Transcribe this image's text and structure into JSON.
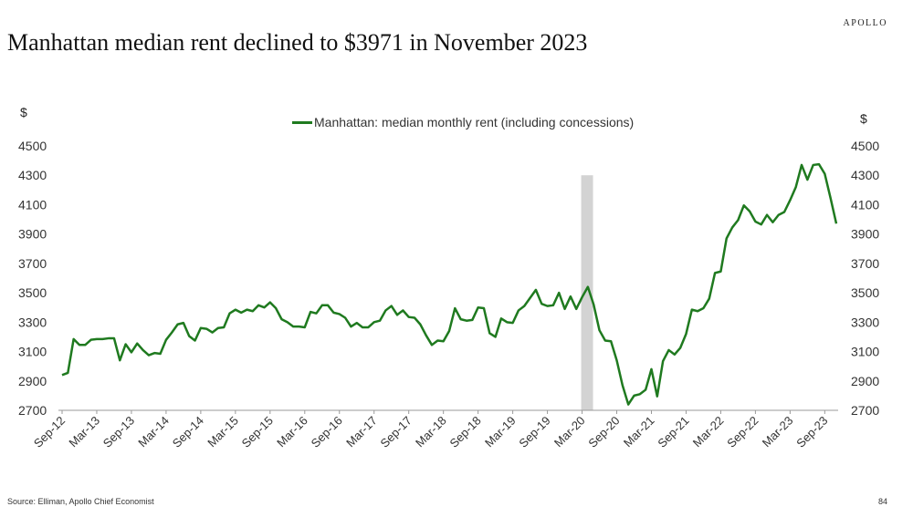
{
  "brand": "APOLLO",
  "title": "Manhattan median rent declined to $3971 in November 2023",
  "footer": {
    "source": "Source: Elliman, Apollo Chief Economist",
    "page": "84"
  },
  "chart_data": {
    "type": "line",
    "ylabel_left": "$",
    "ylabel_right": "$",
    "ylim": [
      2700,
      4500
    ],
    "yticks": [
      2700,
      2900,
      3100,
      3300,
      3500,
      3700,
      3900,
      4100,
      4300,
      4500
    ],
    "xtick_labels": [
      "Sep-12",
      "Mar-13",
      "Sep-13",
      "Mar-14",
      "Sep-14",
      "Mar-15",
      "Sep-15",
      "Mar-16",
      "Sep-16",
      "Mar-17",
      "Sep-17",
      "Mar-18",
      "Sep-18",
      "Mar-19",
      "Sep-19",
      "Mar-20",
      "Sep-20",
      "Mar-21",
      "Sep-21",
      "Mar-22",
      "Sep-22",
      "Mar-23",
      "Sep-23"
    ],
    "legend_position": "top-center",
    "grid": false,
    "shaded_region": {
      "from": "Mar-20",
      "to": "May-20",
      "top": 4300,
      "color": "#d3d3d3"
    },
    "series": [
      {
        "name": "Manhattan: median monthly rent (including concessions)",
        "color": "#1f7a1f",
        "values": [
          2940,
          2955,
          3185,
          3145,
          3145,
          3180,
          3185,
          3185,
          3190,
          3190,
          3040,
          3150,
          3095,
          3155,
          3110,
          3075,
          3090,
          3085,
          3180,
          3230,
          3285,
          3295,
          3205,
          3175,
          3260,
          3255,
          3230,
          3260,
          3265,
          3360,
          3385,
          3365,
          3385,
          3375,
          3415,
          3400,
          3435,
          3395,
          3320,
          3300,
          3270,
          3270,
          3265,
          3370,
          3360,
          3415,
          3415,
          3365,
          3355,
          3330,
          3270,
          3295,
          3265,
          3265,
          3300,
          3310,
          3380,
          3410,
          3350,
          3380,
          3335,
          3330,
          3285,
          3210,
          3145,
          3175,
          3170,
          3240,
          3395,
          3320,
          3310,
          3315,
          3400,
          3395,
          3225,
          3200,
          3325,
          3300,
          3295,
          3380,
          3410,
          3465,
          3520,
          3425,
          3410,
          3415,
          3500,
          3390,
          3475,
          3390,
          3470,
          3540,
          3420,
          3245,
          3175,
          3170,
          3040,
          2870,
          2740,
          2800,
          2810,
          2840,
          2980,
          2795,
          3035,
          3110,
          3080,
          3125,
          3220,
          3385,
          3375,
          3395,
          3460,
          3635,
          3645,
          3870,
          3945,
          3995,
          4095,
          4055,
          3985,
          3965,
          4030,
          3980,
          4030,
          4050,
          4130,
          4220,
          4370,
          4270,
          4370,
          4375,
          4310,
          4145,
          3971
        ]
      }
    ]
  }
}
